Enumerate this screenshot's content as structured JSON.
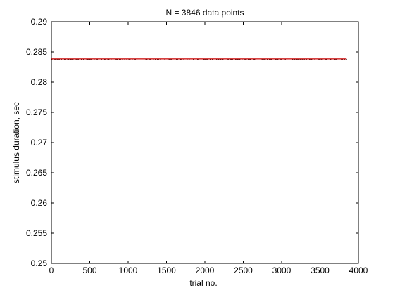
{
  "chart_data": {
    "type": "line",
    "title": "N = 3846 data points",
    "xlabel": "trial no.",
    "ylabel": "stimulus duration, sec",
    "xlim": [
      0,
      4000
    ],
    "ylim": [
      0.25,
      0.29
    ],
    "xticks": [
      0,
      500,
      1000,
      1500,
      2000,
      2500,
      3000,
      3500,
      4000
    ],
    "xtick_labels": [
      "0",
      "500",
      "1000",
      "1500",
      "2000",
      "2500",
      "3000",
      "3500",
      "4000"
    ],
    "yticks": [
      0.25,
      0.255,
      0.26,
      0.265,
      0.27,
      0.275,
      0.28,
      0.285,
      0.29
    ],
    "ytick_labels": [
      "0.25",
      "0.255",
      "0.26",
      "0.265",
      "0.27",
      "0.275",
      "0.28",
      "0.285",
      "0.29"
    ],
    "grid": false,
    "series": [
      {
        "color": "#cc0000",
        "noise_color": "#000000",
        "x": [
          1,
          3846
        ],
        "values": [
          0.28385,
          0.28385
        ]
      }
    ]
  }
}
